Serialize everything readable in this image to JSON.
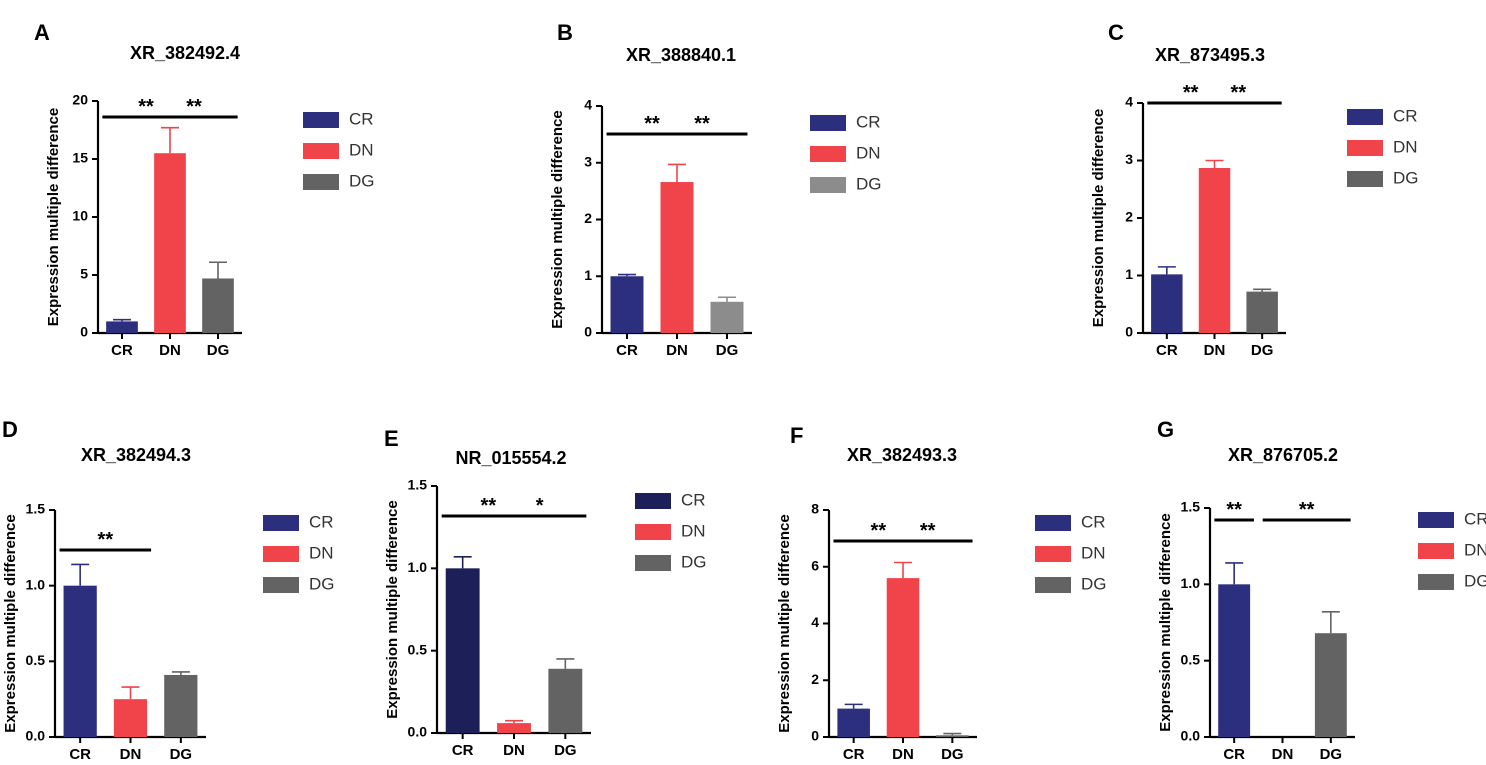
{
  "chart_data": [
    {
      "type": "bar",
      "panel": "A",
      "title": "XR_382492.4",
      "ylabel": "Expression multiple difference",
      "categories": [
        "CR",
        "DN",
        "DG"
      ],
      "values": [
        1.0,
        15.5,
        4.7
      ],
      "errors": [
        0.15,
        2.2,
        1.4
      ],
      "ylim": [
        0,
        20
      ],
      "yticks": [
        "0",
        "5",
        "10",
        "15",
        "20"
      ],
      "colors": [
        "#2b2f7e",
        "#f0434a",
        "#636363"
      ],
      "significance": [
        {
          "from": 0,
          "to": 1,
          "label": "**"
        },
        {
          "from": 1,
          "to": 2,
          "label": "**"
        }
      ],
      "legend": [
        "CR",
        "DN",
        "DG"
      ]
    },
    {
      "type": "bar",
      "panel": "B",
      "title": "XR_388840.1",
      "ylabel": "Expression multiple difference",
      "categories": [
        "CR",
        "DN",
        "DG"
      ],
      "values": [
        1.0,
        2.66,
        0.55
      ],
      "errors": [
        0.03,
        0.31,
        0.08
      ],
      "ylim": [
        0,
        4
      ],
      "yticks": [
        "0",
        "1",
        "2",
        "3",
        "4"
      ],
      "colors": [
        "#2b2f7e",
        "#f0434a",
        "#8c8c8c"
      ],
      "significance": [
        {
          "from": 0,
          "to": 1,
          "label": "**"
        },
        {
          "from": 1,
          "to": 2,
          "label": "**"
        }
      ],
      "legend": [
        "CR",
        "DN",
        "DG"
      ]
    },
    {
      "type": "bar",
      "panel": "C",
      "title": "XR_873495.3",
      "ylabel": "Expression multiple difference",
      "categories": [
        "CR",
        "DN",
        "DG"
      ],
      "values": [
        1.02,
        2.87,
        0.72
      ],
      "errors": [
        0.13,
        0.13,
        0.04
      ],
      "ylim": [
        0,
        4
      ],
      "yticks": [
        "0",
        "1",
        "2",
        "3",
        "4"
      ],
      "colors": [
        "#2b2f7e",
        "#f0434a",
        "#636363"
      ],
      "significance": [
        {
          "from": 0,
          "to": 1,
          "label": "**"
        },
        {
          "from": 1,
          "to": 2,
          "label": "**"
        }
      ],
      "legend": [
        "CR",
        "DN",
        "DG"
      ]
    },
    {
      "type": "bar",
      "panel": "D",
      "title": "XR_382494.3",
      "ylabel": "Expression multiple difference",
      "categories": [
        "CR",
        "DN",
        "DG"
      ],
      "values": [
        1.0,
        0.25,
        0.41
      ],
      "errors": [
        0.14,
        0.08,
        0.02
      ],
      "ylim": [
        0,
        1.5
      ],
      "yticks": [
        "0.0",
        "0.5",
        "1.0",
        "1.5"
      ],
      "colors": [
        "#2b2f7e",
        "#f0434a",
        "#636363"
      ],
      "significance": [
        {
          "from": 0,
          "to": 1,
          "label": "**"
        }
      ],
      "legend": [
        "CR",
        "DN",
        "DG"
      ]
    },
    {
      "type": "bar",
      "panel": "E",
      "title": "NR_015554.2",
      "ylabel": "Expression multiple difference",
      "categories": [
        "CR",
        "DN",
        "DG"
      ],
      "values": [
        1.0,
        0.06,
        0.39
      ],
      "errors": [
        0.07,
        0.015,
        0.06
      ],
      "ylim": [
        0,
        1.5
      ],
      "yticks": [
        "0.0",
        "0.5",
        "1.0",
        "1.5"
      ],
      "colors": [
        "#1c1f58",
        "#f0434a",
        "#636363"
      ],
      "significance": [
        {
          "from": 0,
          "to": 1,
          "label": "**"
        },
        {
          "from": 1,
          "to": 2,
          "label": "*"
        }
      ],
      "legend": [
        "CR",
        "DN",
        "DG"
      ]
    },
    {
      "type": "bar",
      "panel": "F",
      "title": "XR_382493.3",
      "ylabel": "Expression multiple difference",
      "categories": [
        "CR",
        "DN",
        "DG"
      ],
      "values": [
        1.0,
        5.6,
        0.06
      ],
      "errors": [
        0.15,
        0.55,
        0.06
      ],
      "ylim": [
        0,
        8
      ],
      "yticks": [
        "0",
        "2",
        "4",
        "6",
        "8"
      ],
      "colors": [
        "#2b2f7e",
        "#f0434a",
        "#636363"
      ],
      "significance": [
        {
          "from": 0,
          "to": 1,
          "label": "**"
        },
        {
          "from": 1,
          "to": 2,
          "label": "**"
        }
      ],
      "legend": [
        "CR",
        "DN",
        "DG"
      ]
    },
    {
      "type": "bar",
      "panel": "G",
      "title": "XR_876705.2",
      "ylabel": "Expression multiple difference",
      "categories": [
        "CR",
        "DN",
        "DG"
      ],
      "values": [
        1.0,
        0.0,
        0.68
      ],
      "errors": [
        0.14,
        0.0,
        0.14
      ],
      "ylim": [
        0,
        1.5
      ],
      "yticks": [
        "0.0",
        "0.5",
        "1.0",
        "1.5"
      ],
      "colors": [
        "#2b2f7e",
        "#f0434a",
        "#636363"
      ],
      "significance": [
        {
          "from": 0,
          "to": 0,
          "label": "**"
        },
        {
          "from": 1,
          "to": 2,
          "label": "**"
        }
      ],
      "legend": [
        "CR",
        "DN",
        "DG"
      ]
    }
  ]
}
